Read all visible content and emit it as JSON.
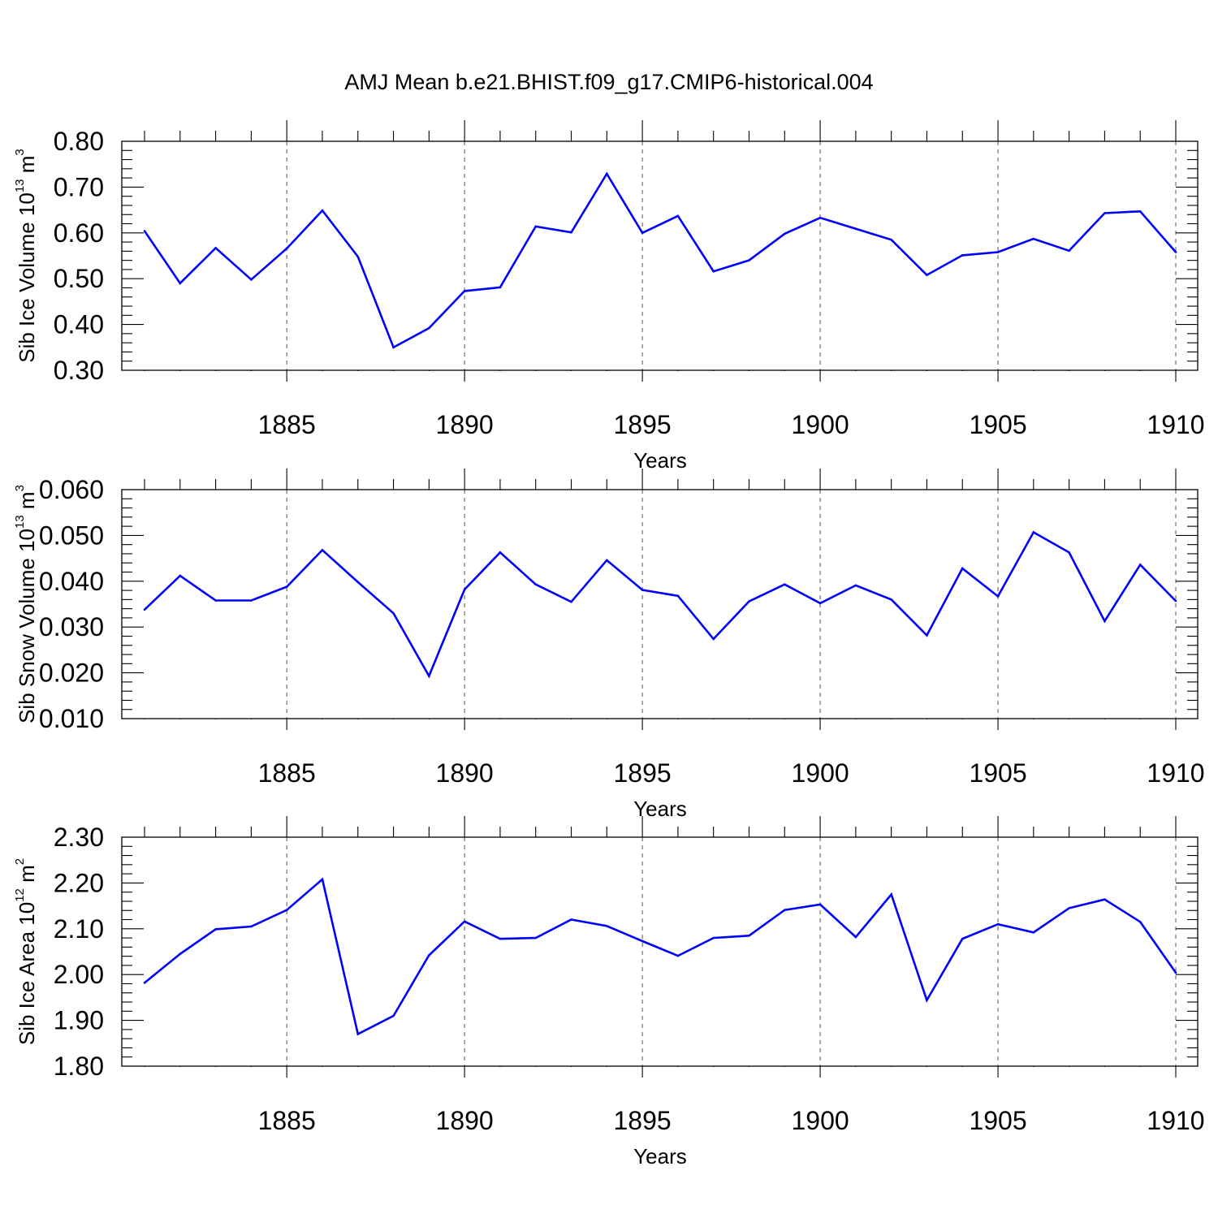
{
  "title": "AMJ Mean b.e21.BHIST.f09_g17.CMIP6-historical.004",
  "colors": {
    "series": "#0000ff",
    "axis": "#000000",
    "grid": "#555555"
  },
  "chart_data": [
    {
      "type": "line",
      "xlabel": "Years",
      "ylabel": {
        "main": "Sib Ice Volume 10",
        "exp": "13",
        "unit": " m",
        "unit_exp": "3"
      },
      "xlim": [
        1881,
        1910
      ],
      "ylim": [
        0.3,
        0.8
      ],
      "xticks": [
        "1885",
        "1890",
        "1895",
        "1900",
        "1905",
        "1910"
      ],
      "yticks": [
        "0.30",
        "0.40",
        "0.50",
        "0.60",
        "0.70",
        "0.80"
      ],
      "grid": "vertical dashed at major x ticks",
      "x": [
        1881,
        1882,
        1883,
        1884,
        1885,
        1886,
        1887,
        1888,
        1889,
        1890,
        1891,
        1892,
        1893,
        1894,
        1895,
        1896,
        1897,
        1898,
        1899,
        1900,
        1901,
        1902,
        1903,
        1904,
        1905,
        1906,
        1907,
        1908,
        1909,
        1910
      ],
      "values": [
        0.604,
        0.49,
        0.567,
        0.498,
        0.566,
        0.649,
        0.548,
        0.35,
        0.392,
        0.473,
        0.481,
        0.614,
        0.601,
        0.729,
        0.6,
        0.637,
        0.516,
        0.54,
        0.598,
        0.633,
        0.609,
        0.585,
        0.508,
        0.551,
        0.558,
        0.587,
        0.561,
        0.643,
        0.647,
        0.558
      ]
    },
    {
      "type": "line",
      "xlabel": "Years",
      "ylabel": {
        "main": "Sib Snow Volume 10",
        "exp": "13",
        "unit": " m",
        "unit_exp": "3"
      },
      "xlim": [
        1881,
        1910
      ],
      "ylim": [
        0.01,
        0.06
      ],
      "xticks": [
        "1885",
        "1890",
        "1895",
        "1900",
        "1905",
        "1910"
      ],
      "yticks": [
        "0.010",
        "0.020",
        "0.030",
        "0.040",
        "0.050",
        "0.060"
      ],
      "grid": "vertical dashed at major x ticks",
      "x": [
        1881,
        1882,
        1883,
        1884,
        1885,
        1886,
        1887,
        1888,
        1889,
        1890,
        1891,
        1892,
        1893,
        1894,
        1895,
        1896,
        1897,
        1898,
        1899,
        1900,
        1901,
        1902,
        1903,
        1904,
        1905,
        1906,
        1907,
        1908,
        1909,
        1910
      ],
      "values": [
        0.0338,
        0.0412,
        0.0358,
        0.0358,
        0.0388,
        0.0468,
        0.0398,
        0.033,
        0.0193,
        0.0382,
        0.0463,
        0.0393,
        0.0355,
        0.0446,
        0.0381,
        0.0368,
        0.0274,
        0.0356,
        0.0393,
        0.0352,
        0.0391,
        0.036,
        0.0282,
        0.0428,
        0.0367,
        0.0507,
        0.0463,
        0.0313,
        0.0436,
        0.0357
      ]
    },
    {
      "type": "line",
      "xlabel": "Years",
      "ylabel": {
        "main": "Sib Ice Area 10",
        "exp": "12",
        "unit": " m",
        "unit_exp": "2"
      },
      "xlim": [
        1881,
        1910
      ],
      "ylim": [
        1.8,
        2.3
      ],
      "xticks": [
        "1885",
        "1890",
        "1895",
        "1900",
        "1905",
        "1910"
      ],
      "yticks": [
        "1.80",
        "1.90",
        "2.00",
        "2.10",
        "2.20",
        "2.30"
      ],
      "grid": "vertical dashed at major x ticks",
      "x": [
        1881,
        1882,
        1883,
        1884,
        1885,
        1886,
        1887,
        1888,
        1889,
        1890,
        1891,
        1892,
        1893,
        1894,
        1895,
        1896,
        1897,
        1898,
        1899,
        1900,
        1901,
        1902,
        1903,
        1904,
        1905,
        1906,
        1907,
        1908,
        1909,
        1910
      ],
      "values": [
        1.982,
        2.045,
        2.099,
        2.105,
        2.141,
        2.208,
        1.87,
        1.91,
        2.042,
        2.116,
        2.078,
        2.08,
        2.12,
        2.106,
        2.073,
        2.041,
        2.08,
        2.085,
        2.141,
        2.153,
        2.082,
        2.175,
        1.944,
        2.078,
        2.11,
        2.092,
        2.145,
        2.164,
        2.115,
        2.004
      ]
    }
  ]
}
